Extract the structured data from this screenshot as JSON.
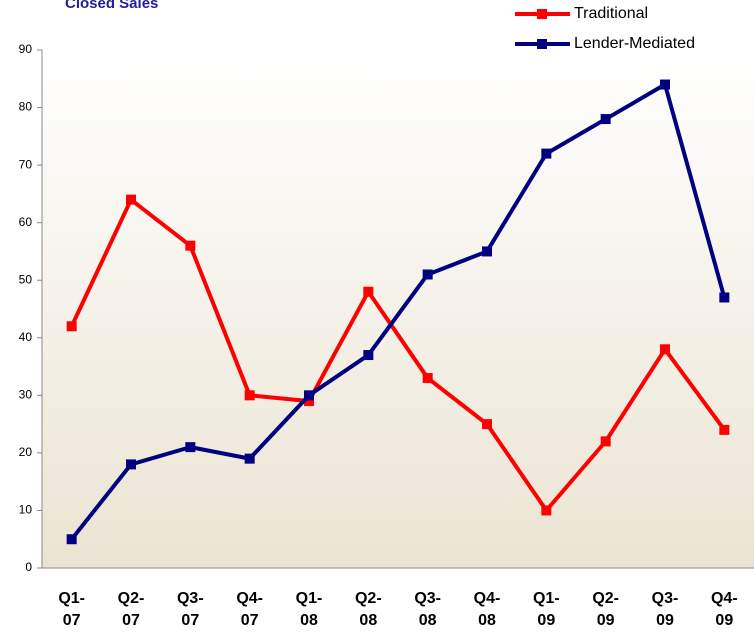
{
  "chart_data": {
    "type": "line",
    "title": "Closed Sales",
    "categories": [
      "Q1-07",
      "Q2-07",
      "Q3-07",
      "Q4-07",
      "Q1-08",
      "Q2-08",
      "Q3-08",
      "Q4-08",
      "Q1-09",
      "Q2-09",
      "Q3-09",
      "Q4-09"
    ],
    "series": [
      {
        "name": "Traditional",
        "color": "#ff0000",
        "values": [
          42,
          64,
          56,
          30,
          29,
          48,
          33,
          25,
          10,
          22,
          38,
          24
        ]
      },
      {
        "name": "Lender-Mediated",
        "color": "#000080",
        "values": [
          5,
          18,
          21,
          19,
          30,
          37,
          51,
          55,
          72,
          78,
          84,
          47
        ]
      }
    ],
    "ylim": [
      0,
      90
    ],
    "yticks": [
      0,
      10,
      20,
      30,
      40,
      50,
      60,
      70,
      80,
      90
    ],
    "grid": false,
    "legend": "top-right"
  }
}
